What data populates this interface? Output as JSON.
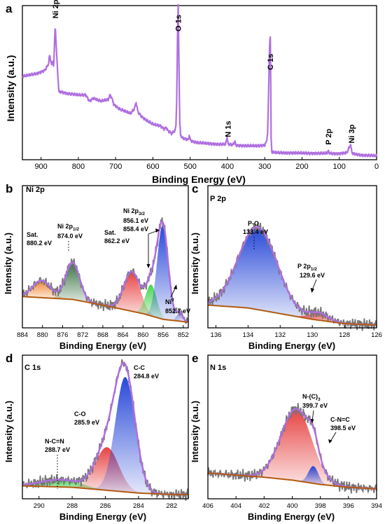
{
  "figure": {
    "colors": {
      "envelope": "#b06fe0",
      "raw": "#777777",
      "background": "#b25a10",
      "orange": "#f07f24",
      "darkgreen": "#2f6a3a",
      "red": "#e63a3a",
      "green": "#3fd34a",
      "blue": "#1d3fd6",
      "axis": "#000000"
    }
  },
  "chart_data": [
    {
      "id": "a",
      "panel_letter": "a",
      "type": "line",
      "title": "",
      "xlabel": "Binding Energy (eV)",
      "ylabel": "Intensity (a.u.)",
      "xlim": [
        950,
        0
      ],
      "xticks": [
        900,
        800,
        700,
        600,
        500,
        400,
        300,
        200,
        100,
        0
      ],
      "ylim": [
        0,
        1
      ],
      "annotations": [
        {
          "text": "Ni 2p",
          "x": 862
        },
        {
          "text": "O 1s",
          "x": 532
        },
        {
          "text": "C 1s",
          "x": 285
        },
        {
          "text": "N 1s",
          "x": 399
        },
        {
          "text": "P 2p",
          "x": 130
        },
        {
          "text": "Ni 3p",
          "x": 68
        }
      ],
      "series": [
        {
          "color": "#b06fe0",
          "x": [
            950,
            930,
            910,
            890,
            880,
            877,
            872,
            868,
            866,
            862,
            859,
            855,
            852,
            845,
            830,
            800,
            780,
            770,
            760,
            740,
            720,
            715,
            710,
            705,
            700,
            690,
            680,
            670,
            660,
            650,
            645,
            640,
            630,
            620,
            600,
            580,
            570,
            565,
            560,
            550,
            545,
            540,
            538,
            536,
            534,
            532,
            530,
            528,
            526,
            520,
            505,
            502,
            500,
            495,
            480,
            450,
            420,
            405,
            401,
            399,
            397,
            393,
            385,
            380,
            378,
            370,
            350,
            320,
            300,
            295,
            292,
            290,
            287,
            285,
            284,
            283,
            281,
            278,
            270,
            250,
            220,
            200,
            180,
            160,
            140,
            133,
            130,
            128,
            120,
            100,
            80,
            75,
            70,
            68,
            65,
            55,
            40,
            20,
            0
          ],
          "y": [
            0.54,
            0.55,
            0.56,
            0.58,
            0.62,
            0.68,
            0.62,
            0.64,
            0.6,
            0.88,
            0.72,
            0.55,
            0.44,
            0.44,
            0.43,
            0.42,
            0.42,
            0.38,
            0.4,
            0.38,
            0.39,
            0.42,
            0.4,
            0.36,
            0.35,
            0.33,
            0.32,
            0.31,
            0.3,
            0.33,
            0.37,
            0.31,
            0.28,
            0.26,
            0.23,
            0.22,
            0.2,
            0.21,
            0.19,
            0.17,
            0.18,
            0.19,
            0.23,
            0.4,
            0.8,
            1.0,
            0.6,
            0.25,
            0.16,
            0.14,
            0.13,
            0.16,
            0.13,
            0.12,
            0.11,
            0.105,
            0.1,
            0.1,
            0.15,
            0.11,
            0.1,
            0.098,
            0.098,
            0.12,
            0.095,
            0.093,
            0.09,
            0.09,
            0.095,
            0.12,
            0.18,
            0.4,
            0.75,
            0.8,
            0.5,
            0.15,
            0.05,
            0.048,
            0.046,
            0.045,
            0.044,
            0.043,
            0.042,
            0.042,
            0.041,
            0.043,
            0.06,
            0.045,
            0.04,
            0.04,
            0.045,
            0.07,
            0.1,
            0.07,
            0.04,
            0.035,
            0.03,
            0.028,
            0.025
          ]
        }
      ]
    },
    {
      "id": "b",
      "panel_letter": "b",
      "panel_title": "Ni 2p",
      "type": "area",
      "xlabel": "Binding Energy (eV)",
      "ylabel": "Intensity (a.u.)",
      "xlim": [
        884,
        851
      ],
      "xticks": [
        884,
        880,
        876,
        872,
        868,
        864,
        860,
        856,
        852
      ],
      "ylim": [
        0,
        1
      ],
      "background": {
        "x": [
          884,
          874,
          868,
          860,
          856,
          851
        ],
        "y": [
          0.22,
          0.2,
          0.16,
          0.1,
          0.06,
          0.04
        ]
      },
      "peaks": [
        {
          "label": "Sat.",
          "x": 880.2,
          "amp": 0.12,
          "width": 1.8,
          "color": "#f07f24"
        },
        {
          "label": "Ni 2p1/2",
          "x": 874.0,
          "amp": 0.26,
          "width": 1.4,
          "color": "#2f6a3a"
        },
        {
          "label": "Sat.",
          "x": 862.2,
          "amp": 0.28,
          "width": 1.6,
          "color": "#e63a3a"
        },
        {
          "label": "Ni 2p3/2",
          "x": 858.4,
          "amp": 0.22,
          "width": 1.1,
          "color": "#3fd34a"
        },
        {
          "label": "Ni 2p3/2",
          "x": 856.1,
          "amp": 0.66,
          "width": 1.1,
          "color": "#1d3fd6"
        },
        {
          "label": "Ni0",
          "x": 852.7,
          "amp": 0.06,
          "width": 0.6,
          "color": "#7a7ad0"
        }
      ],
      "annotations": [
        {
          "lines": [
            "Sat.",
            "880.2 eV"
          ]
        },
        {
          "lines": [
            "Ni 2p",
            "874.0 eV"
          ],
          "sub": "1/2"
        },
        {
          "lines": [
            "Sat.",
            "862.2 eV"
          ]
        },
        {
          "lines": [
            "Ni 2p",
            "856.1 eV",
            "858.4 eV"
          ],
          "sub": "3/2"
        },
        {
          "lines": [
            "Ni",
            "852.7 eV"
          ],
          "sup": "0"
        }
      ]
    },
    {
      "id": "c",
      "panel_letter": "c",
      "panel_title": "P 2p",
      "type": "area",
      "xlabel": "Binding Energy (eV)",
      "ylabel": "Intensity (a.u.)",
      "xlim": [
        136.5,
        126
      ],
      "xticks": [
        136,
        134,
        132,
        130,
        128,
        126
      ],
      "ylim": [
        0,
        1
      ],
      "background": {
        "x": [
          136.5,
          134,
          132,
          130,
          128,
          126
        ],
        "y": [
          0.16,
          0.14,
          0.1,
          0.06,
          0.03,
          0.02
        ]
      },
      "peaks": [
        {
          "label": "P-O",
          "x": 133.4,
          "amp": 0.58,
          "width": 1.2,
          "color": "#1d3fd6"
        },
        {
          "label": "P 2p1/2",
          "x": 129.6,
          "amp": 0.05,
          "width": 0.6,
          "color": "#e63a3a"
        }
      ],
      "annotations": [
        {
          "lines": [
            "P-O",
            "133.4 eV"
          ]
        },
        {
          "lines": [
            "P 2p",
            "129.6 eV"
          ],
          "sub": "1/2"
        }
      ]
    },
    {
      "id": "d",
      "panel_letter": "d",
      "panel_title": "C 1s",
      "type": "area",
      "xlabel": "Binding Energy (eV)",
      "ylabel": "Intensity (a.u.)",
      "xlim": [
        291,
        281
      ],
      "xticks": [
        290,
        288,
        286,
        284,
        282
      ],
      "ylim": [
        0,
        1
      ],
      "background": {
        "x": [
          291,
          288,
          286,
          284,
          282,
          281
        ],
        "y": [
          0.09,
          0.08,
          0.06,
          0.04,
          0.03,
          0.03
        ]
      },
      "peaks": [
        {
          "label": "N-C=N",
          "x": 288.7,
          "amp": 0.05,
          "width": 1.2,
          "color": "#3fd34a"
        },
        {
          "label": "C-O",
          "x": 285.9,
          "amp": 0.3,
          "width": 0.7,
          "color": "#e63a3a"
        },
        {
          "label": "C-C",
          "x": 284.8,
          "amp": 0.8,
          "width": 0.6,
          "color": "#1d3fd6"
        }
      ],
      "annotations": [
        {
          "lines": [
            "N-C=N",
            "288.7 eV"
          ]
        },
        {
          "lines": [
            "C-O",
            "285.9 eV"
          ]
        },
        {
          "lines": [
            "C-C",
            "284.8 eV"
          ]
        }
      ]
    },
    {
      "id": "e",
      "panel_letter": "e",
      "panel_title": "N 1s",
      "type": "area",
      "xlabel": "Binding Energy (eV)",
      "ylabel": "Intensity (a.u.)",
      "xlim": [
        406,
        394
      ],
      "xticks": [
        406,
        404,
        402,
        400,
        398,
        396,
        394
      ],
      "ylim": [
        0,
        1
      ],
      "background": {
        "x": [
          406,
          402,
          400,
          398,
          396,
          394
        ],
        "y": [
          0.18,
          0.15,
          0.13,
          0.1,
          0.08,
          0.07
        ]
      },
      "peaks": [
        {
          "label": "N-(C)3",
          "x": 399.7,
          "amp": 0.5,
          "width": 1.1,
          "color": "#e63a3a"
        },
        {
          "label": "C-N=C",
          "x": 398.5,
          "amp": 0.12,
          "width": 0.35,
          "color": "#1d3fd6"
        }
      ],
      "annotations": [
        {
          "lines": [
            "N-(C)",
            "399.7 eV"
          ],
          "sub": "3"
        },
        {
          "lines": [
            "C-N=C",
            "398.5 eV"
          ]
        }
      ]
    }
  ]
}
